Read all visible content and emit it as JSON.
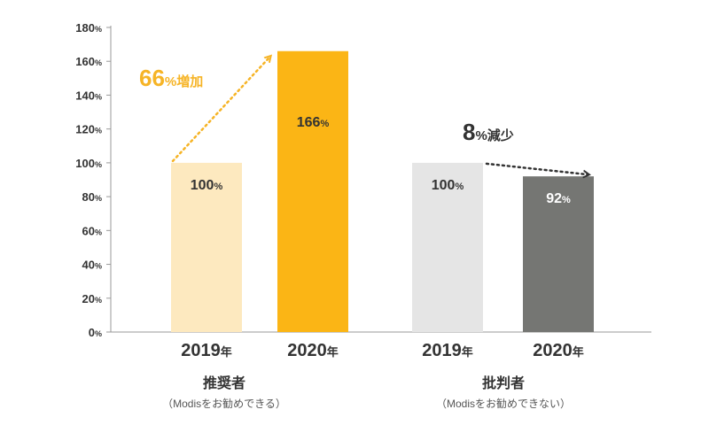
{
  "chart_data": {
    "type": "bar",
    "ylim": [
      0,
      180
    ],
    "y_ticks": [
      0,
      20,
      40,
      60,
      80,
      100,
      120,
      140,
      160,
      180
    ],
    "y_tick_suffix": "%",
    "groups": [
      {
        "name": "推奨者",
        "subtitle": "（Modisをお勧めできる）",
        "bars": [
          {
            "year": "2019",
            "value": 100,
            "label": "100",
            "color": "#fde9bf",
            "label_color": "#333333"
          },
          {
            "year": "2020",
            "value": 166,
            "label": "166",
            "color": "#fbb515",
            "label_color": "#333333"
          }
        ],
        "change": {
          "value": "66",
          "text": "増加",
          "color": "#f6b426"
        }
      },
      {
        "name": "批判者",
        "subtitle": "（Modisをお勧めできない）",
        "bars": [
          {
            "year": "2019",
            "value": 100,
            "label": "100",
            "color": "#e5e5e5",
            "label_color": "#333333"
          },
          {
            "year": "2020",
            "value": 92,
            "label": "92",
            "color": "#757673",
            "label_color": "#ffffff"
          }
        ],
        "change": {
          "value": "8",
          "text": "減少",
          "color": "#333333"
        }
      }
    ],
    "year_suffix": "年",
    "percent_suffix": "%"
  }
}
